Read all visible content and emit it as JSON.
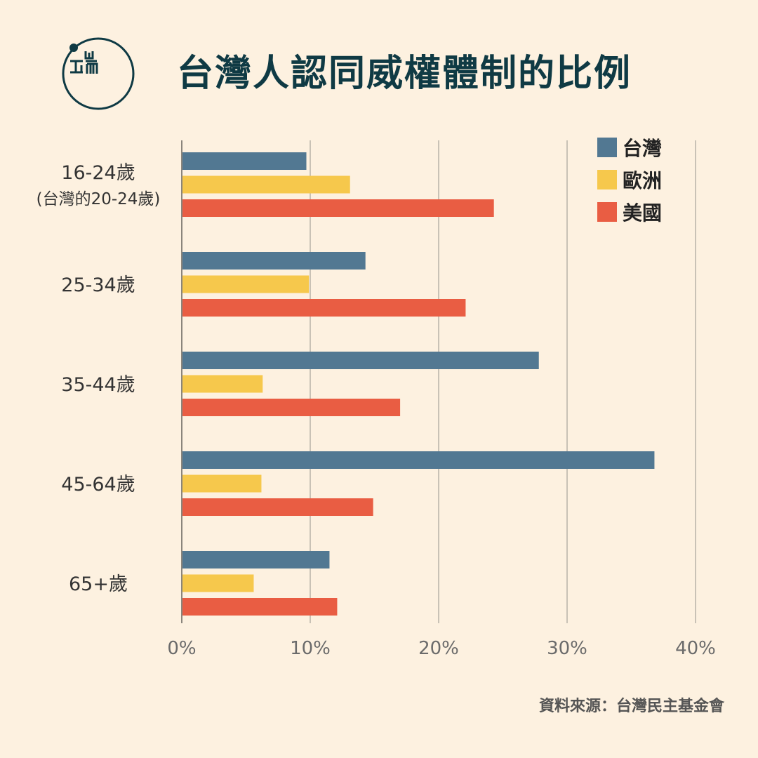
{
  "title": "台灣人認同威權體制的比例",
  "logo": {
    "icon": "端傳媒 logo",
    "text": "端"
  },
  "source": "資料來源：台灣民主基金會",
  "colors": {
    "taiwan": "#527892",
    "europe": "#f6c84c",
    "usa": "#e95d43",
    "grid": "#c9c2b6",
    "text": "#333333",
    "tick": "#6b6b6b",
    "title": "#0f3a44"
  },
  "chart_data": {
    "type": "bar",
    "orientation": "horizontal",
    "categories": [
      [
        "16-24歲",
        "(台灣的20-24歲)"
      ],
      [
        "25-34歲"
      ],
      [
        "35-44歲"
      ],
      [
        "45-64歲"
      ],
      [
        "65+歲"
      ]
    ],
    "series": [
      {
        "name": "台灣",
        "color": "#527892",
        "values": [
          9.7,
          14.3,
          27.8,
          36.8,
          11.5
        ]
      },
      {
        "name": "歐洲",
        "color": "#f6c84c",
        "values": [
          13.1,
          9.9,
          6.3,
          6.2,
          5.6
        ]
      },
      {
        "name": "美國",
        "color": "#e95d43",
        "values": [
          24.3,
          22.1,
          17.0,
          14.9,
          12.1
        ]
      }
    ],
    "xlim": [
      0,
      40
    ],
    "xticks": [
      "0%",
      "10%",
      "20%",
      "30%",
      "40%"
    ],
    "grid": true,
    "legend_position": "top-right"
  }
}
